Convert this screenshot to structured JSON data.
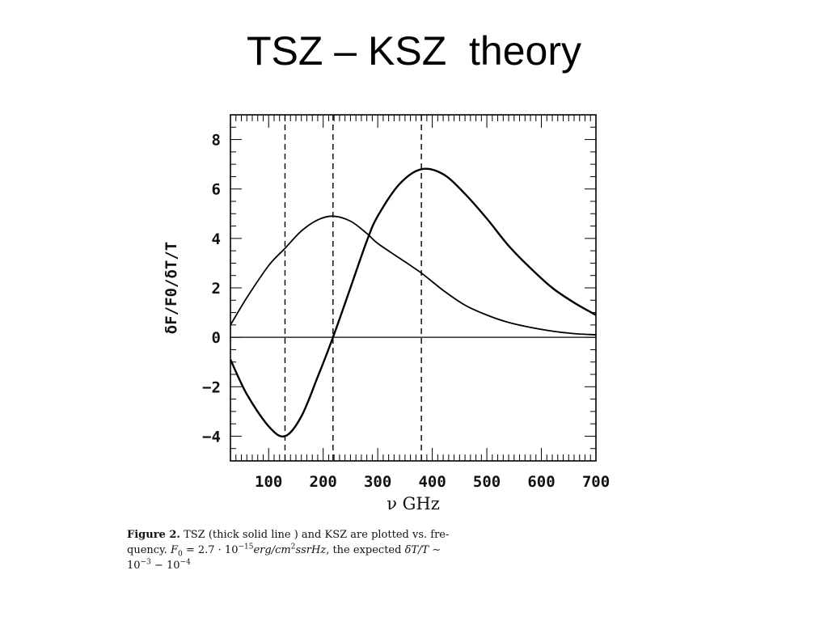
{
  "slide": {
    "title": "TSZ – KSZ  theory"
  },
  "chart_data": {
    "type": "line",
    "xlabel": "ν GHz",
    "ylabel": "δF/F0/δT/T",
    "xlim": [
      30,
      700
    ],
    "ylim": [
      -5,
      9
    ],
    "xticks": [
      100,
      200,
      300,
      400,
      500,
      600,
      700
    ],
    "yticks": [
      -4,
      -2,
      0,
      2,
      4,
      6,
      8
    ],
    "grid": false,
    "reference_lines": {
      "horizontal": [
        0
      ],
      "vertical": [
        130,
        218,
        380
      ]
    },
    "series": [
      {
        "x": [
          30,
          60,
          100,
          130,
          160,
          190,
          218,
          250,
          280,
          300,
          340,
          380,
          420,
          460,
          500,
          540,
          580,
          620,
          660,
          700
        ],
        "y": [
          -0.9,
          -2.3,
          -3.6,
          -4.0,
          -3.2,
          -1.6,
          0.0,
          2.0,
          3.9,
          4.9,
          6.2,
          6.8,
          6.6,
          5.8,
          4.8,
          3.7,
          2.8,
          2.0,
          1.4,
          0.9
        ]
      },
      {
        "x": [
          30,
          60,
          100,
          130,
          160,
          190,
          218,
          250,
          280,
          300,
          340,
          380,
          420,
          460,
          500,
          540,
          580,
          620,
          660,
          700
        ],
        "y": [
          0.5,
          1.6,
          2.9,
          3.6,
          4.3,
          4.75,
          4.9,
          4.7,
          4.2,
          3.8,
          3.2,
          2.6,
          1.9,
          1.3,
          0.9,
          0.6,
          0.4,
          0.25,
          0.15,
          0.1
        ]
      }
    ]
  },
  "caption": {
    "label": "Figure 2.",
    "line1": "TSZ (thick solid line ) and KSZ are plotted vs. fre-",
    "line2_a": "quency.",
    "f0": "F",
    "f0_sub": "0",
    "eq_a": " = 2.7 · 10",
    "exp1": "−15",
    "unit_a": "erg/cm",
    "exp2": "2",
    "unit_b": "ssrHz",
    "line2_b": ", the expected",
    "dtt": "δT/T ∼",
    "line3_a": "10",
    "exp3": "−3",
    "line3_b": " − 10",
    "exp4": "−4"
  }
}
